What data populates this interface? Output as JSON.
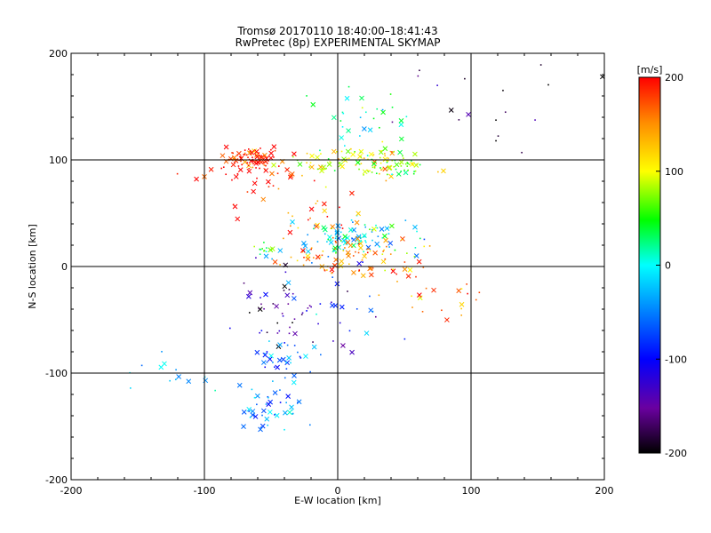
{
  "chart_data": {
    "type": "scatter",
    "title": "Tromsø 20170110 18:40:00–18:41:43",
    "subtitle": "RwPretec (8p) EXPERIMENTAL SKYMAP",
    "xlabel": "E-W location [km]",
    "ylabel": "N-S location [km]",
    "xlim": [
      -200,
      200
    ],
    "ylim": [
      -200,
      200
    ],
    "x_ticks": [
      "-200",
      "-100",
      "0",
      "100",
      "200"
    ],
    "y_ticks": [
      "-200",
      "-100",
      "0",
      "100",
      "200"
    ],
    "grid": "major lines at -100, 0, 100 on both axes",
    "colorbar": {
      "label": "[m/s]",
      "range": [
        -200,
        200
      ],
      "ticks": [
        "200",
        "100",
        "0",
        "-100",
        "-200"
      ],
      "colormap": "rainbow: black (-200) → purple → blue (-100) → cyan (0) → green → yellow (100) → red (200)"
    },
    "markers": "cross (x) = large, dot = small; color = Doppler velocity",
    "clusters": [
      {
        "center": [
          -65,
          100
        ],
        "spread": [
          10,
          6
        ],
        "velocity": 195,
        "count": 90
      },
      {
        "center": [
          15,
          100
        ],
        "spread": [
          25,
          7
        ],
        "velocity": 90,
        "count": 90
      },
      {
        "center": [
          40,
          90
        ],
        "spread": [
          12,
          6
        ],
        "velocity": 70,
        "count": 40
      },
      {
        "center": [
          15,
          28
        ],
        "spread": [
          22,
          8
        ],
        "velocity": -10,
        "count": 90
      },
      {
        "center": [
          10,
          10
        ],
        "spread": [
          28,
          10
        ],
        "velocity": 150,
        "count": 90
      },
      {
        "center": [
          -55,
          15
        ],
        "spread": [
          6,
          4
        ],
        "velocity": 40,
        "count": 14
      },
      {
        "center": [
          -45,
          -40
        ],
        "spread": [
          18,
          20
        ],
        "velocity": -150,
        "count": 40
      },
      {
        "center": [
          -40,
          -90
        ],
        "spread": [
          15,
          12
        ],
        "velocity": -60,
        "count": 40
      },
      {
        "center": [
          -50,
          -135
        ],
        "spread": [
          10,
          8
        ],
        "velocity": -30,
        "count": 40
      },
      {
        "center": [
          20,
          140
        ],
        "spread": [
          20,
          15
        ],
        "velocity": 20,
        "count": 30
      },
      {
        "center": [
          100,
          150
        ],
        "spread": [
          40,
          25
        ],
        "velocity": -180,
        "count": 18
      },
      {
        "center": [
          -70,
          80
        ],
        "spread": [
          20,
          15
        ],
        "velocity": 200,
        "count": 30
      },
      {
        "center": [
          70,
          -30
        ],
        "spread": [
          25,
          15
        ],
        "velocity": 150,
        "count": 25
      },
      {
        "center": [
          -10,
          50
        ],
        "spread": [
          15,
          12
        ],
        "velocity": 170,
        "count": 25
      },
      {
        "center": [
          -130,
          -100
        ],
        "spread": [
          20,
          12
        ],
        "velocity": -20,
        "count": 14
      },
      {
        "center": [
          0,
          -40
        ],
        "spread": [
          25,
          25
        ],
        "velocity": -90,
        "count": 30
      }
    ]
  }
}
